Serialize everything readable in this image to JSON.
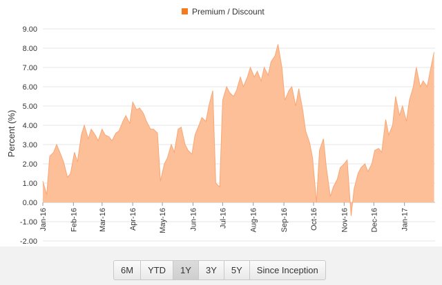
{
  "chart_data": {
    "type": "area",
    "title": "",
    "xlabel": "",
    "ylabel": "Percent (%)",
    "legend": {
      "position": "top-center",
      "entries": [
        "Premium / Discount"
      ]
    },
    "series": [
      {
        "name": "Premium / Discount",
        "color": "#f47b20",
        "fill": "#fdbf98",
        "x": [
          "2016-01-01",
          "2016-01-05",
          "2016-01-08",
          "2016-01-12",
          "2016-01-15",
          "2016-01-19",
          "2016-01-22",
          "2016-01-26",
          "2016-01-29",
          "2016-02-02",
          "2016-02-05",
          "2016-02-09",
          "2016-02-12",
          "2016-02-16",
          "2016-02-19",
          "2016-02-23",
          "2016-02-26",
          "2016-03-01",
          "2016-03-04",
          "2016-03-08",
          "2016-03-11",
          "2016-03-15",
          "2016-03-18",
          "2016-03-22",
          "2016-03-25",
          "2016-03-29",
          "2016-04-01",
          "2016-04-05",
          "2016-04-08",
          "2016-04-12",
          "2016-04-15",
          "2016-04-19",
          "2016-04-22",
          "2016-04-26",
          "2016-04-29",
          "2016-05-03",
          "2016-05-06",
          "2016-05-10",
          "2016-05-13",
          "2016-05-17",
          "2016-05-20",
          "2016-05-24",
          "2016-05-27",
          "2016-05-31",
          "2016-06-03",
          "2016-06-07",
          "2016-06-10",
          "2016-06-14",
          "2016-06-17",
          "2016-06-21",
          "2016-06-24",
          "2016-06-28",
          "2016-07-01",
          "2016-07-05",
          "2016-07-08",
          "2016-07-12",
          "2016-07-15",
          "2016-07-19",
          "2016-07-22",
          "2016-07-26",
          "2016-07-29",
          "2016-08-02",
          "2016-08-05",
          "2016-08-09",
          "2016-08-12",
          "2016-08-16",
          "2016-08-19",
          "2016-08-23",
          "2016-08-26",
          "2016-08-30",
          "2016-09-02",
          "2016-09-06",
          "2016-09-09",
          "2016-09-13",
          "2016-09-16",
          "2016-09-20",
          "2016-09-23",
          "2016-09-27",
          "2016-09-30",
          "2016-10-04",
          "2016-10-07",
          "2016-10-11",
          "2016-10-14",
          "2016-10-18",
          "2016-10-21",
          "2016-10-25",
          "2016-10-28",
          "2016-11-01",
          "2016-11-04",
          "2016-11-08",
          "2016-11-11",
          "2016-11-15",
          "2016-11-18",
          "2016-11-22",
          "2016-11-25",
          "2016-11-29",
          "2016-12-02",
          "2016-12-06",
          "2016-12-09",
          "2016-12-13",
          "2016-12-16",
          "2016-12-20",
          "2016-12-23",
          "2016-12-27",
          "2016-12-30",
          "2017-01-03",
          "2017-01-06",
          "2017-01-10",
          "2017-01-13",
          "2017-01-17",
          "2017-01-20",
          "2017-01-24",
          "2017-01-27",
          "2017-01-31"
        ],
        "values": [
          1.1,
          0.4,
          2.4,
          2.6,
          3.0,
          2.5,
          2.1,
          1.3,
          1.5,
          2.6,
          2.1,
          3.5,
          4.0,
          3.3,
          3.8,
          3.5,
          3.2,
          3.8,
          3.5,
          3.4,
          3.2,
          3.6,
          3.7,
          4.2,
          4.5,
          4.1,
          5.2,
          4.8,
          4.9,
          4.6,
          4.2,
          3.8,
          3.8,
          3.6,
          1.1,
          2.0,
          2.3,
          3.0,
          2.6,
          3.8,
          3.9,
          3.0,
          2.7,
          2.5,
          3.5,
          4.0,
          4.4,
          4.2,
          5.0,
          5.8,
          1.0,
          0.8,
          5.3,
          6.0,
          5.7,
          5.5,
          5.8,
          6.5,
          6.0,
          6.5,
          7.0,
          6.5,
          6.8,
          6.3,
          7.0,
          6.6,
          7.3,
          7.6,
          8.2,
          7.0,
          5.3,
          5.8,
          6.0,
          5.0,
          5.9,
          4.8,
          3.7,
          3.1,
          2.3,
          0.0,
          2.7,
          3.3,
          1.8,
          0.3,
          0.8,
          1.2,
          1.8,
          2.0,
          2.2,
          -0.7,
          0.7,
          1.5,
          1.8,
          2.0,
          1.6,
          2.0,
          2.7,
          2.8,
          2.6,
          4.3,
          3.5,
          4.0,
          5.5,
          4.5,
          5.0,
          4.2,
          5.3,
          6.0,
          7.0,
          6.0,
          6.3,
          6.0,
          6.8,
          7.8
        ]
      }
    ],
    "ylim": [
      -2,
      9
    ],
    "yticks": [
      "9.00",
      "8.00",
      "7.00",
      "6.00",
      "5.00",
      "4.00",
      "3.00",
      "2.00",
      "1.00",
      "0.00",
      "-1.00",
      "-2.00"
    ],
    "xticks": [
      {
        "label": "Jan-16",
        "date": "2016-01-01"
      },
      {
        "label": "Feb-16",
        "date": "2016-02-01"
      },
      {
        "label": "Mar-16",
        "date": "2016-03-01"
      },
      {
        "label": "Apr-16",
        "date": "2016-04-01"
      },
      {
        "label": "May-16",
        "date": "2016-05-01"
      },
      {
        "label": "Jun-16",
        "date": "2016-06-01"
      },
      {
        "label": "Jul-16",
        "date": "2016-07-01"
      },
      {
        "label": "Aug-16",
        "date": "2016-08-01"
      },
      {
        "label": "Sep-16",
        "date": "2016-09-01"
      },
      {
        "label": "Oct-16",
        "date": "2016-10-01"
      },
      {
        "label": "Nov-16",
        "date": "2016-11-01"
      },
      {
        "label": "Dec-16",
        "date": "2016-12-01"
      },
      {
        "label": "Jan-17",
        "date": "2017-01-01"
      }
    ],
    "x_range": [
      "2016-01-01",
      "2017-02-01"
    ],
    "grid": true
  },
  "range_selector": {
    "buttons": [
      "6M",
      "YTD",
      "1Y",
      "3Y",
      "5Y",
      "Since Inception"
    ],
    "selected": "1Y"
  }
}
